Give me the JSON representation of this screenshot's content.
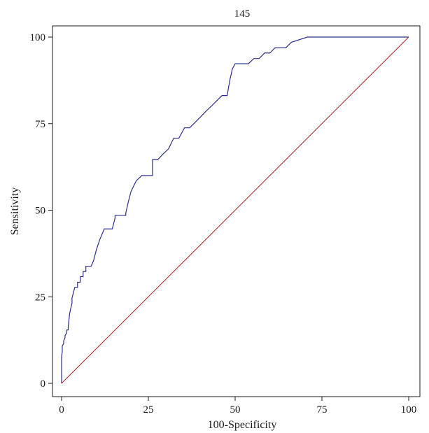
{
  "chart_data": {
    "type": "line",
    "title": "145",
    "xlabel": "100-Specificity",
    "ylabel": "Sensitivity",
    "xlim": [
      0,
      100
    ],
    "ylim": [
      0,
      100
    ],
    "xticks": [
      0,
      25,
      50,
      75,
      100
    ],
    "yticks": [
      0,
      25,
      50,
      75,
      100
    ],
    "grid": false,
    "series": [
      {
        "color": "#2b2f8a",
        "x": [
          0,
          0,
          0.2,
          0.2,
          0.6,
          0.6,
          1.0,
          1.0,
          1.5,
          1.5,
          1.9,
          1.9,
          2.3,
          2.6,
          3.0,
          3.0,
          3.8,
          4.6,
          4.6,
          5.4,
          5.4,
          6.2,
          6.2,
          7.0,
          7.0,
          8.5,
          9.2,
          10.0,
          11.0,
          12.3,
          13.1,
          14.6,
          15.4,
          15.4,
          16.9,
          18.5,
          18.5,
          19.2,
          20.0,
          21.5,
          23.1,
          24.6,
          26.2,
          26.2,
          27.7,
          29.2,
          30.8,
          32.3,
          33.8,
          35.4,
          36.9,
          38.5,
          40.0,
          41.5,
          43.1,
          44.6,
          46.2,
          47.7,
          48.5,
          49.2,
          50.0,
          53.8,
          55.4,
          56.9,
          58.5,
          60.0,
          61.5,
          64.6,
          66.2,
          70.8,
          72.3,
          100
        ],
        "y": [
          0,
          7.7,
          9.2,
          10.8,
          11.5,
          12.3,
          13.1,
          13.8,
          14.6,
          15.4,
          15.4,
          16.2,
          20.0,
          21.5,
          23.1,
          24.6,
          27.7,
          27.7,
          29.2,
          29.2,
          30.8,
          30.8,
          32.3,
          32.3,
          33.8,
          33.8,
          35.4,
          38.5,
          41.5,
          44.6,
          44.6,
          44.6,
          47.7,
          48.5,
          48.5,
          48.5,
          49.2,
          52.3,
          55.4,
          58.5,
          60.0,
          60.0,
          60.0,
          64.6,
          64.6,
          66.2,
          67.7,
          70.8,
          70.8,
          73.8,
          73.8,
          75.4,
          76.9,
          78.5,
          80.0,
          81.5,
          83.1,
          83.1,
          87.7,
          90.8,
          92.3,
          92.3,
          93.8,
          93.8,
          95.4,
          95.4,
          96.9,
          96.9,
          98.5,
          100,
          100,
          100
        ]
      },
      {
        "color": "#b02020",
        "x": [
          0,
          100
        ],
        "y": [
          0,
          100
        ]
      }
    ]
  }
}
